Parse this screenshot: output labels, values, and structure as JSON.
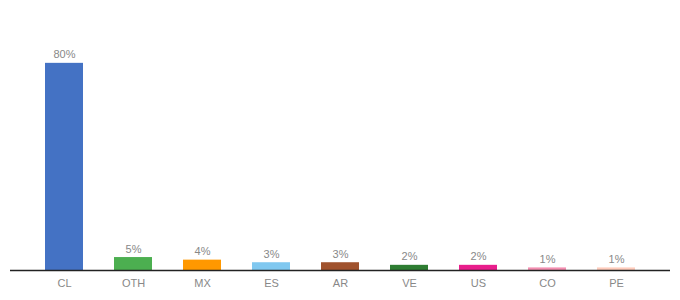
{
  "chart_data": {
    "type": "bar",
    "categories": [
      "CL",
      "OTH",
      "MX",
      "ES",
      "AR",
      "VE",
      "US",
      "CO",
      "PE"
    ],
    "values": [
      80,
      5,
      4,
      3,
      3,
      2,
      2,
      1,
      1
    ],
    "value_labels": [
      "80%",
      "5%",
      "4%",
      "3%",
      "3%",
      "2%",
      "2%",
      "1%",
      "1%"
    ],
    "colors": [
      "#4472C4",
      "#4CAF50",
      "#FF9800",
      "#80C8F0",
      "#A0522D",
      "#2E7D32",
      "#E91E8C",
      "#F48FB1",
      "#FFCCBC"
    ],
    "ylim": [
      0,
      95
    ],
    "grid": false,
    "data_labels": true,
    "tick_labels": "x"
  }
}
